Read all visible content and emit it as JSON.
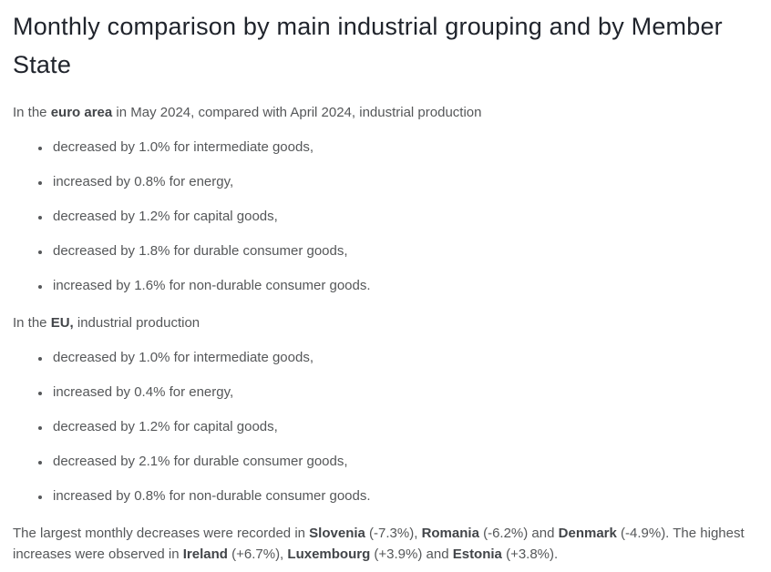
{
  "title": "Monthly comparison by main industrial grouping and by Member State",
  "euro_area": {
    "intro_prefix": "In the ",
    "intro_bold": "euro area",
    "intro_suffix": " in May 2024, compared with April 2024, industrial production",
    "bullets": [
      "decreased by 1.0% for intermediate goods,",
      "increased by 0.8% for energy,",
      "decreased by 1.2% for capital goods,",
      "decreased by 1.8% for durable consumer goods,",
      "increased by 1.6% for non-durable consumer goods."
    ]
  },
  "eu": {
    "intro_prefix": "In the ",
    "intro_bold": "EU,",
    "intro_suffix": " industrial production",
    "bullets": [
      "decreased by 1.0% for intermediate goods,",
      "increased by 0.4% for energy,",
      "decreased by 1.2% for capital goods,",
      "decreased by 2.1% for durable consumer goods,",
      "increased by 0.8% for non-durable consumer goods."
    ]
  },
  "summary": {
    "segments": [
      {
        "bold": false,
        "text": "The largest monthly decreases were recorded in "
      },
      {
        "bold": true,
        "text": "Slovenia"
      },
      {
        "bold": false,
        "text": " (-7.3%), "
      },
      {
        "bold": true,
        "text": "Romania"
      },
      {
        "bold": false,
        "text": " (-6.2%) and "
      },
      {
        "bold": true,
        "text": "Denmark"
      },
      {
        "bold": false,
        "text": " (-4.9%). The highest increases were observed in "
      },
      {
        "bold": true,
        "text": "Ireland"
      },
      {
        "bold": false,
        "text": " (+6.7%), "
      },
      {
        "bold": true,
        "text": "Luxembourg"
      },
      {
        "bold": false,
        "text": " (+3.9%) and "
      },
      {
        "bold": true,
        "text": "Estonia"
      },
      {
        "bold": false,
        "text": " (+3.8%)."
      }
    ]
  },
  "colors": {
    "background": "#ffffff",
    "title_text": "#20242c",
    "body_text": "#555759",
    "bold_text": "#424549"
  }
}
